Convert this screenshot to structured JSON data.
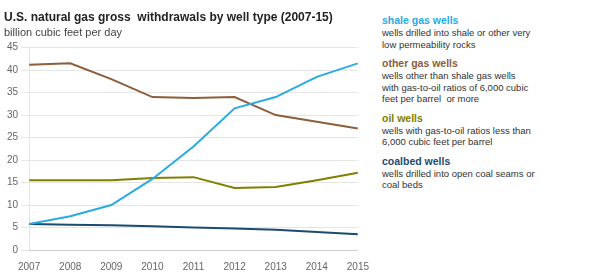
{
  "chart_data": {
    "type": "line",
    "title": "U.S. natural gas gross  withdrawals by well type (2007-15)",
    "subtitle": "billion cubic feet per day",
    "x": [
      2007,
      2008,
      2009,
      2010,
      2011,
      2012,
      2013,
      2014,
      2015
    ],
    "xlim": [
      2007,
      2015
    ],
    "xticks": [
      2007,
      2008,
      2009,
      2010,
      2011,
      2012,
      2013,
      2014,
      2015
    ],
    "ylim": [
      0,
      45
    ],
    "yticks": [
      0,
      5,
      10,
      15,
      20,
      25,
      30,
      35,
      40,
      45
    ],
    "grid": "y",
    "legend": "right",
    "series": [
      {
        "name": "shale gas wells",
        "color": "#29ABE2",
        "values": [
          5.8,
          7.5,
          10.0,
          15.8,
          23.0,
          31.5,
          34.0,
          38.5,
          41.5
        ]
      },
      {
        "name": "other gas wells",
        "color": "#8B5E3C",
        "values": [
          41.2,
          41.5,
          38.0,
          34.0,
          33.8,
          34.0,
          30.0,
          28.5,
          27.0
        ]
      },
      {
        "name": "oil wells",
        "color": "#808000",
        "values": [
          15.5,
          15.5,
          15.5,
          16.0,
          16.2,
          13.8,
          14.0,
          15.5,
          17.2
        ]
      },
      {
        "name": "coalbed wells",
        "color": "#1C4B6E",
        "values": [
          5.8,
          5.6,
          5.5,
          5.3,
          5.0,
          4.8,
          4.5,
          4.0,
          3.5
        ]
      }
    ],
    "annotations": [
      "wells drilled into shale or other very\nlow permeability rocks",
      "wells other than shale gas wells\nwith gas-to-oil ratios of 6,000 cubic\nfeet per barrel  or more",
      "wells with gas-to-oil ratios less than\n6,000 cubic feet per barrel",
      "wells drilled into open coal seams or\ncoal beds"
    ]
  }
}
